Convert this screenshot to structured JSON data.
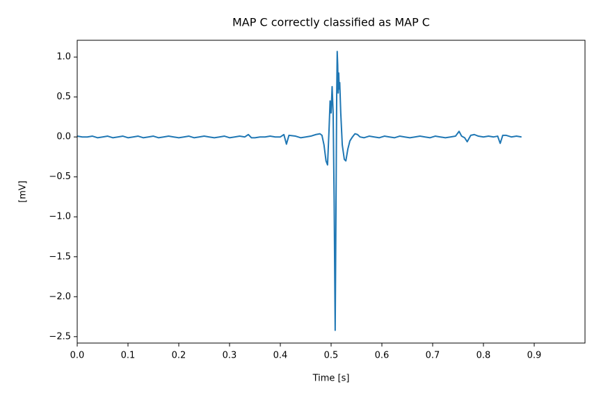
{
  "chart_data": {
    "type": "line",
    "title": "MAP C correctly classified as MAP C",
    "x_label": "Time [s]",
    "y_label": "[mV]",
    "color": "#1f77b4",
    "xlim": [
      0,
      1.0
    ],
    "ylim": [
      -2.58,
      1.21
    ],
    "xticks": [
      {
        "value": 0,
        "label": "0.0"
      },
      0.1,
      0.2,
      0.3,
      0.4,
      0.5,
      0.6,
      0.7,
      0.8,
      0.9
    ],
    "yticks": [
      {
        "value": 1,
        "label": "1.0"
      },
      0.5,
      {
        "value": 0,
        "label": "0.0"
      },
      {
        "value": -0.5,
        "label": "−0.5"
      },
      {
        "value": -1,
        "label": "−1.0"
      },
      {
        "value": -1.5,
        "label": "−1.5"
      },
      {
        "value": -2,
        "label": "−2.0"
      },
      {
        "value": -2.5,
        "label": "−2.5"
      }
    ],
    "x": [
      0,
      0.01,
      0.02,
      0.03,
      0.04,
      0.05,
      0.06,
      0.07,
      0.08,
      0.09,
      0.1,
      0.11,
      0.12,
      0.13,
      0.14,
      0.15,
      0.16,
      0.17,
      0.18,
      0.19,
      0.2,
      0.21,
      0.22,
      0.23,
      0.24,
      0.25,
      0.26,
      0.27,
      0.28,
      0.29,
      0.3,
      0.31,
      0.32,
      0.33,
      0.337,
      0.343,
      0.35,
      0.36,
      0.37,
      0.38,
      0.39,
      0.4,
      0.407,
      0.412,
      0.417,
      0.43,
      0.44,
      0.45,
      0.46,
      0.47,
      0.478,
      0.482,
      0.486,
      0.49,
      0.493,
      0.496,
      0.498,
      0.5,
      0.502,
      0.504,
      0.506,
      0.508,
      0.509,
      0.511,
      0.512,
      0.513,
      0.514,
      0.515,
      0.516,
      0.517,
      0.519,
      0.522,
      0.526,
      0.529,
      0.533,
      0.537,
      0.542,
      0.547,
      0.552,
      0.557,
      0.565,
      0.575,
      0.585,
      0.595,
      0.605,
      0.615,
      0.625,
      0.635,
      0.645,
      0.655,
      0.665,
      0.675,
      0.685,
      0.695,
      0.705,
      0.715,
      0.725,
      0.735,
      0.745,
      0.752,
      0.757,
      0.763,
      0.768,
      0.775,
      0.782,
      0.79,
      0.8,
      0.81,
      0.82,
      0.828,
      0.833,
      0.838,
      0.845,
      0.855,
      0.865,
      0.875
    ],
    "values": [
      0.01,
      0,
      0,
      0.01,
      -0.01,
      0,
      0.01,
      -0.01,
      0,
      0.01,
      -0.01,
      0,
      0.01,
      -0.01,
      0,
      0.01,
      -0.01,
      0,
      0.01,
      0,
      -0.01,
      0,
      0.01,
      -0.01,
      0,
      0.01,
      0,
      -0.01,
      0,
      0.01,
      -0.01,
      0,
      0.01,
      0,
      0.03,
      -0.01,
      -0.01,
      0,
      0,
      0.01,
      0,
      0,
      0.03,
      -0.09,
      0.02,
      0.01,
      -0.01,
      0,
      0.01,
      0.03,
      0.04,
      0.02,
      -0.1,
      -0.3,
      -0.35,
      0.1,
      0.45,
      0.3,
      0.63,
      0.3,
      -0.8,
      -2.42,
      -1.5,
      0.5,
      1.07,
      0.9,
      0.55,
      0.8,
      0.6,
      0.68,
      0.3,
      -0.1,
      -0.28,
      -0.3,
      -0.15,
      -0.05,
      0,
      0.04,
      0.03,
      0,
      -0.01,
      0.01,
      0,
      -0.01,
      0.01,
      0,
      -0.01,
      0.01,
      0,
      -0.01,
      0,
      0.01,
      0,
      -0.01,
      0.01,
      0,
      -0.01,
      0,
      0.01,
      0.07,
      0.01,
      -0.01,
      -0.06,
      0.02,
      0.03,
      0.01,
      0,
      0.01,
      0,
      0.01,
      -0.08,
      0.02,
      0.02,
      0,
      0.01,
      0
    ]
  }
}
